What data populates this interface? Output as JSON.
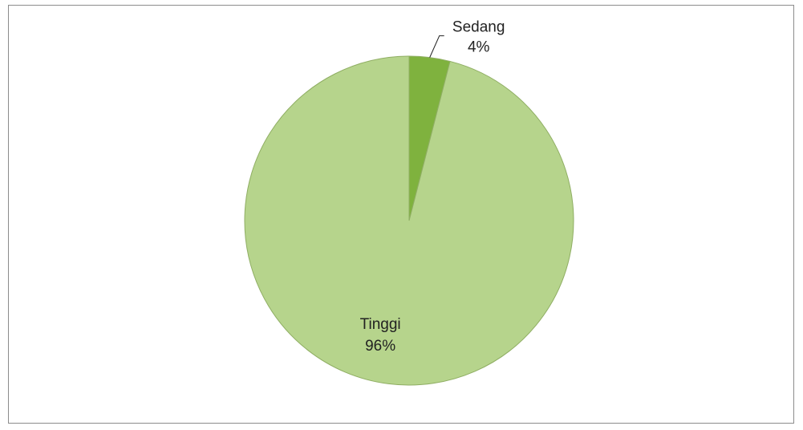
{
  "chart_data": {
    "type": "pie",
    "categories": [
      "Sedang",
      "Tinggi"
    ],
    "values": [
      4,
      96
    ],
    "value_labels": [
      "4%",
      "96%"
    ],
    "colors": [
      "#7fb23e",
      "#b6d48c"
    ]
  }
}
